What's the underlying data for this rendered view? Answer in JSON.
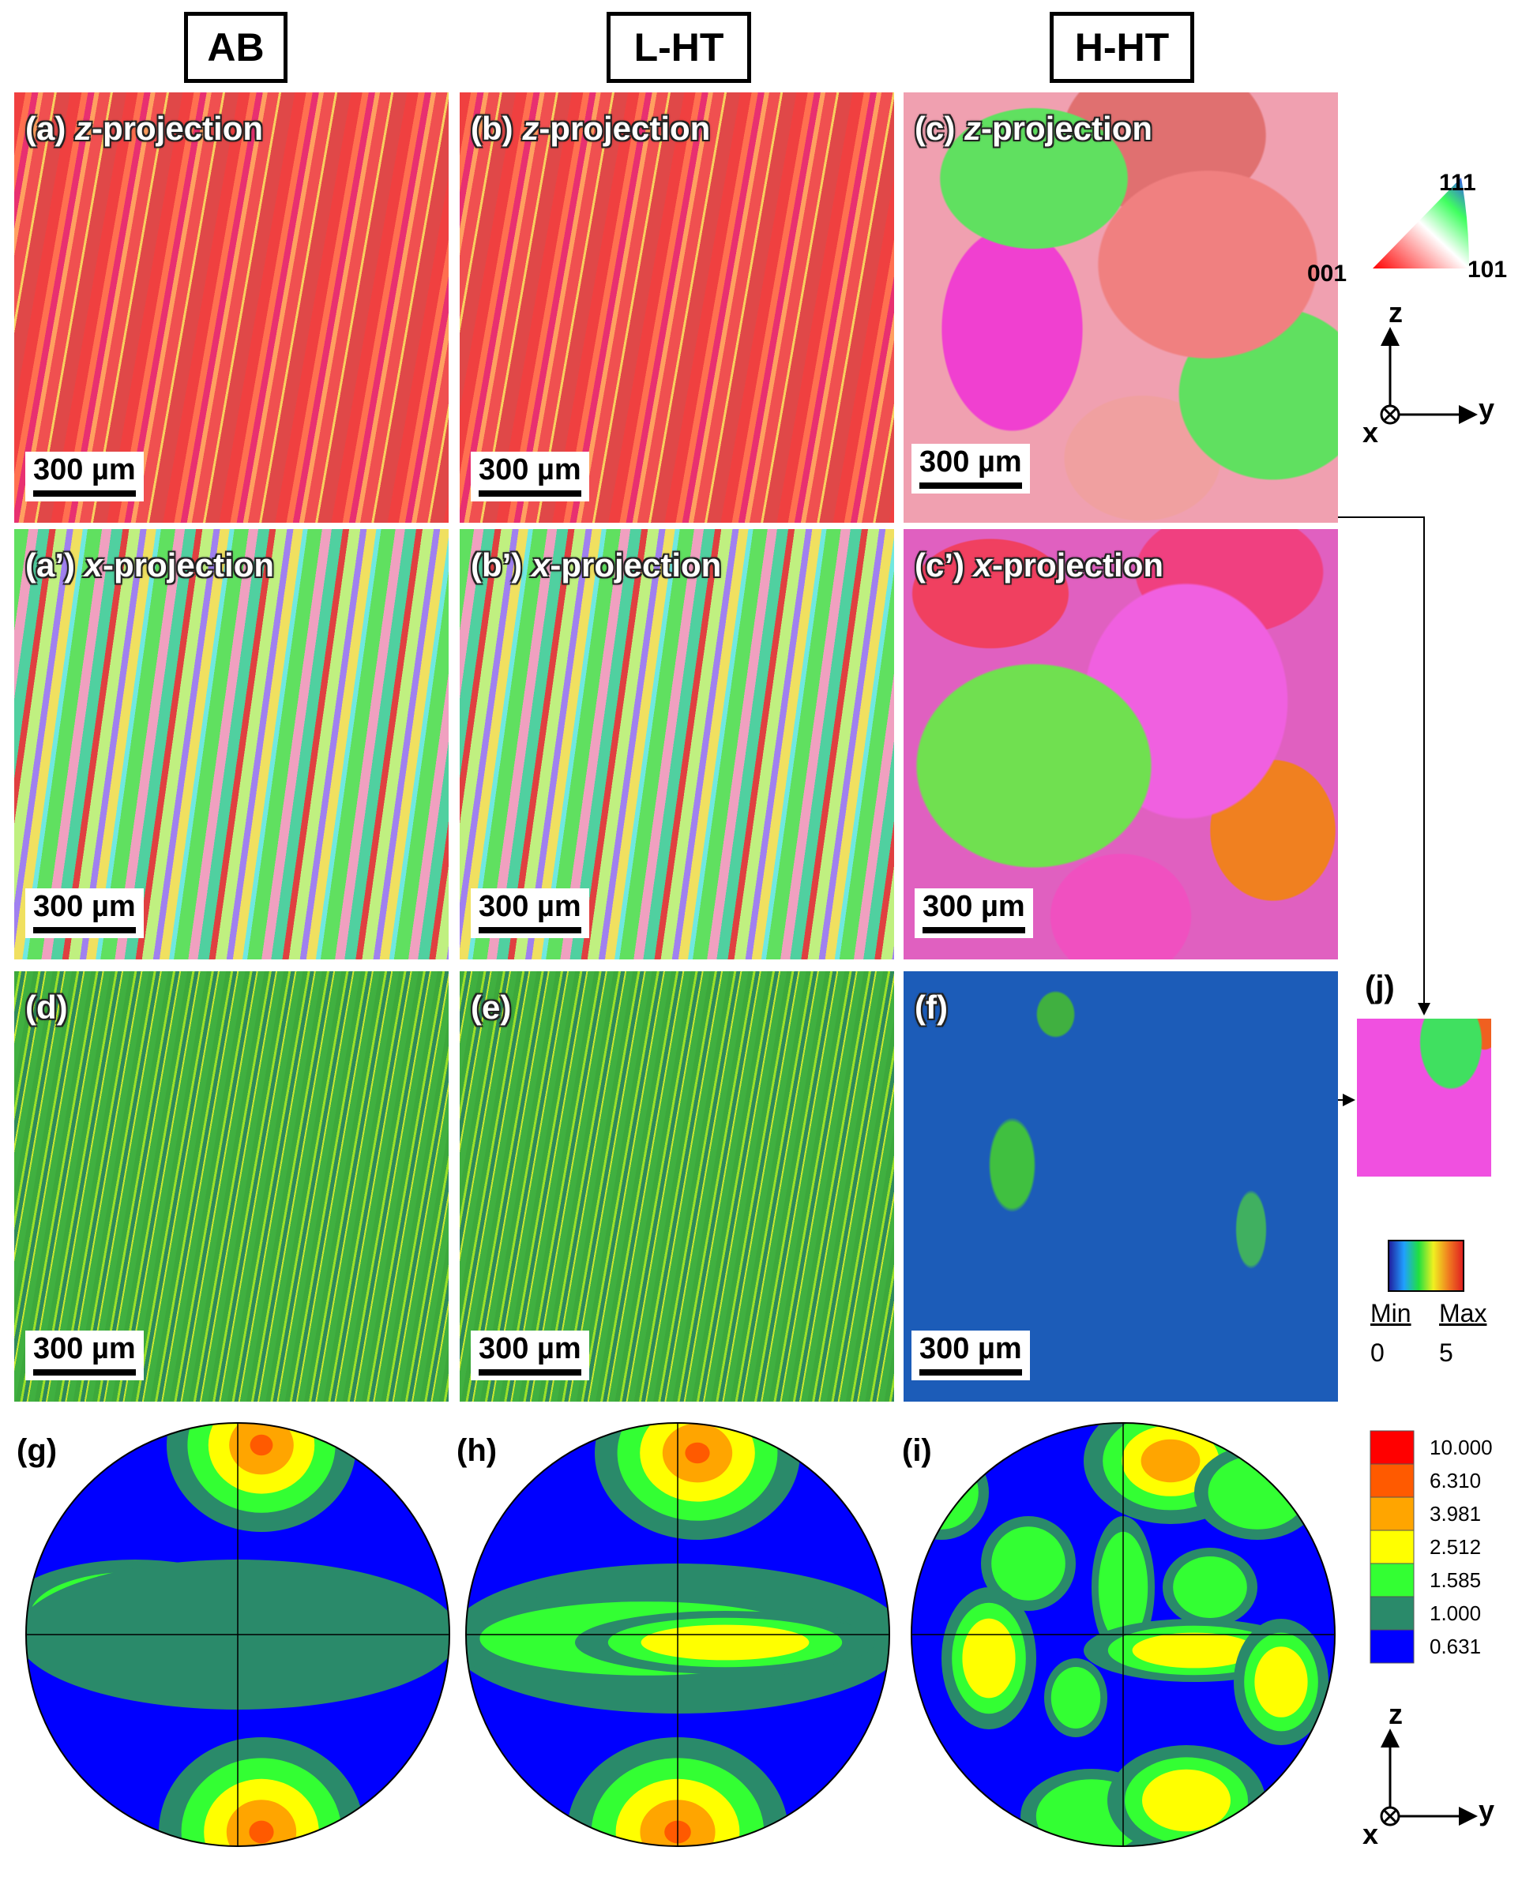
{
  "columns": [
    "AB",
    "L-HT",
    "H-HT"
  ],
  "panels": [
    {
      "label": "(a)",
      "axis": "z",
      "suffix": "-projection",
      "scale_bar": "300 µm"
    },
    {
      "label": "(b)",
      "axis": "z",
      "suffix": "-projection",
      "scale_bar": "300 µm"
    },
    {
      "label": "(c)",
      "axis": "z",
      "suffix": "-projection",
      "scale_bar": "300 µm"
    },
    {
      "label": "(a’)",
      "axis": "x",
      "suffix": "-projection",
      "scale_bar": "300 µm"
    },
    {
      "label": "(b’)",
      "axis": "x",
      "suffix": "-projection",
      "scale_bar": "300 µm"
    },
    {
      "label": "(c’)",
      "axis": "x",
      "suffix": "-projection",
      "scale_bar": "300 µm"
    },
    {
      "label": "(d)",
      "scale_bar": "300 µm"
    },
    {
      "label": "(e)",
      "scale_bar": "300 µm"
    },
    {
      "label": "(f)",
      "scale_bar": "300 µm"
    }
  ],
  "ipf_key": {
    "top": "111",
    "left": "001",
    "right": "101"
  },
  "axes_top": {
    "z": "z",
    "x": "x",
    "y": "y"
  },
  "axes_bottom": {
    "z": "z",
    "x": "x",
    "y": "y"
  },
  "inset": {
    "label": "(j)"
  },
  "kam_legend": {
    "min": "Min",
    "max": "Max",
    "min_value": "0",
    "max_value": "5"
  },
  "pole_figures": {
    "labels": [
      "(g)",
      "(h)",
      "(i)"
    ],
    "levels": [
      "10.000",
      "6.310",
      "3.981",
      "2.512",
      "1.585",
      "1.000",
      "0.631"
    ]
  }
}
